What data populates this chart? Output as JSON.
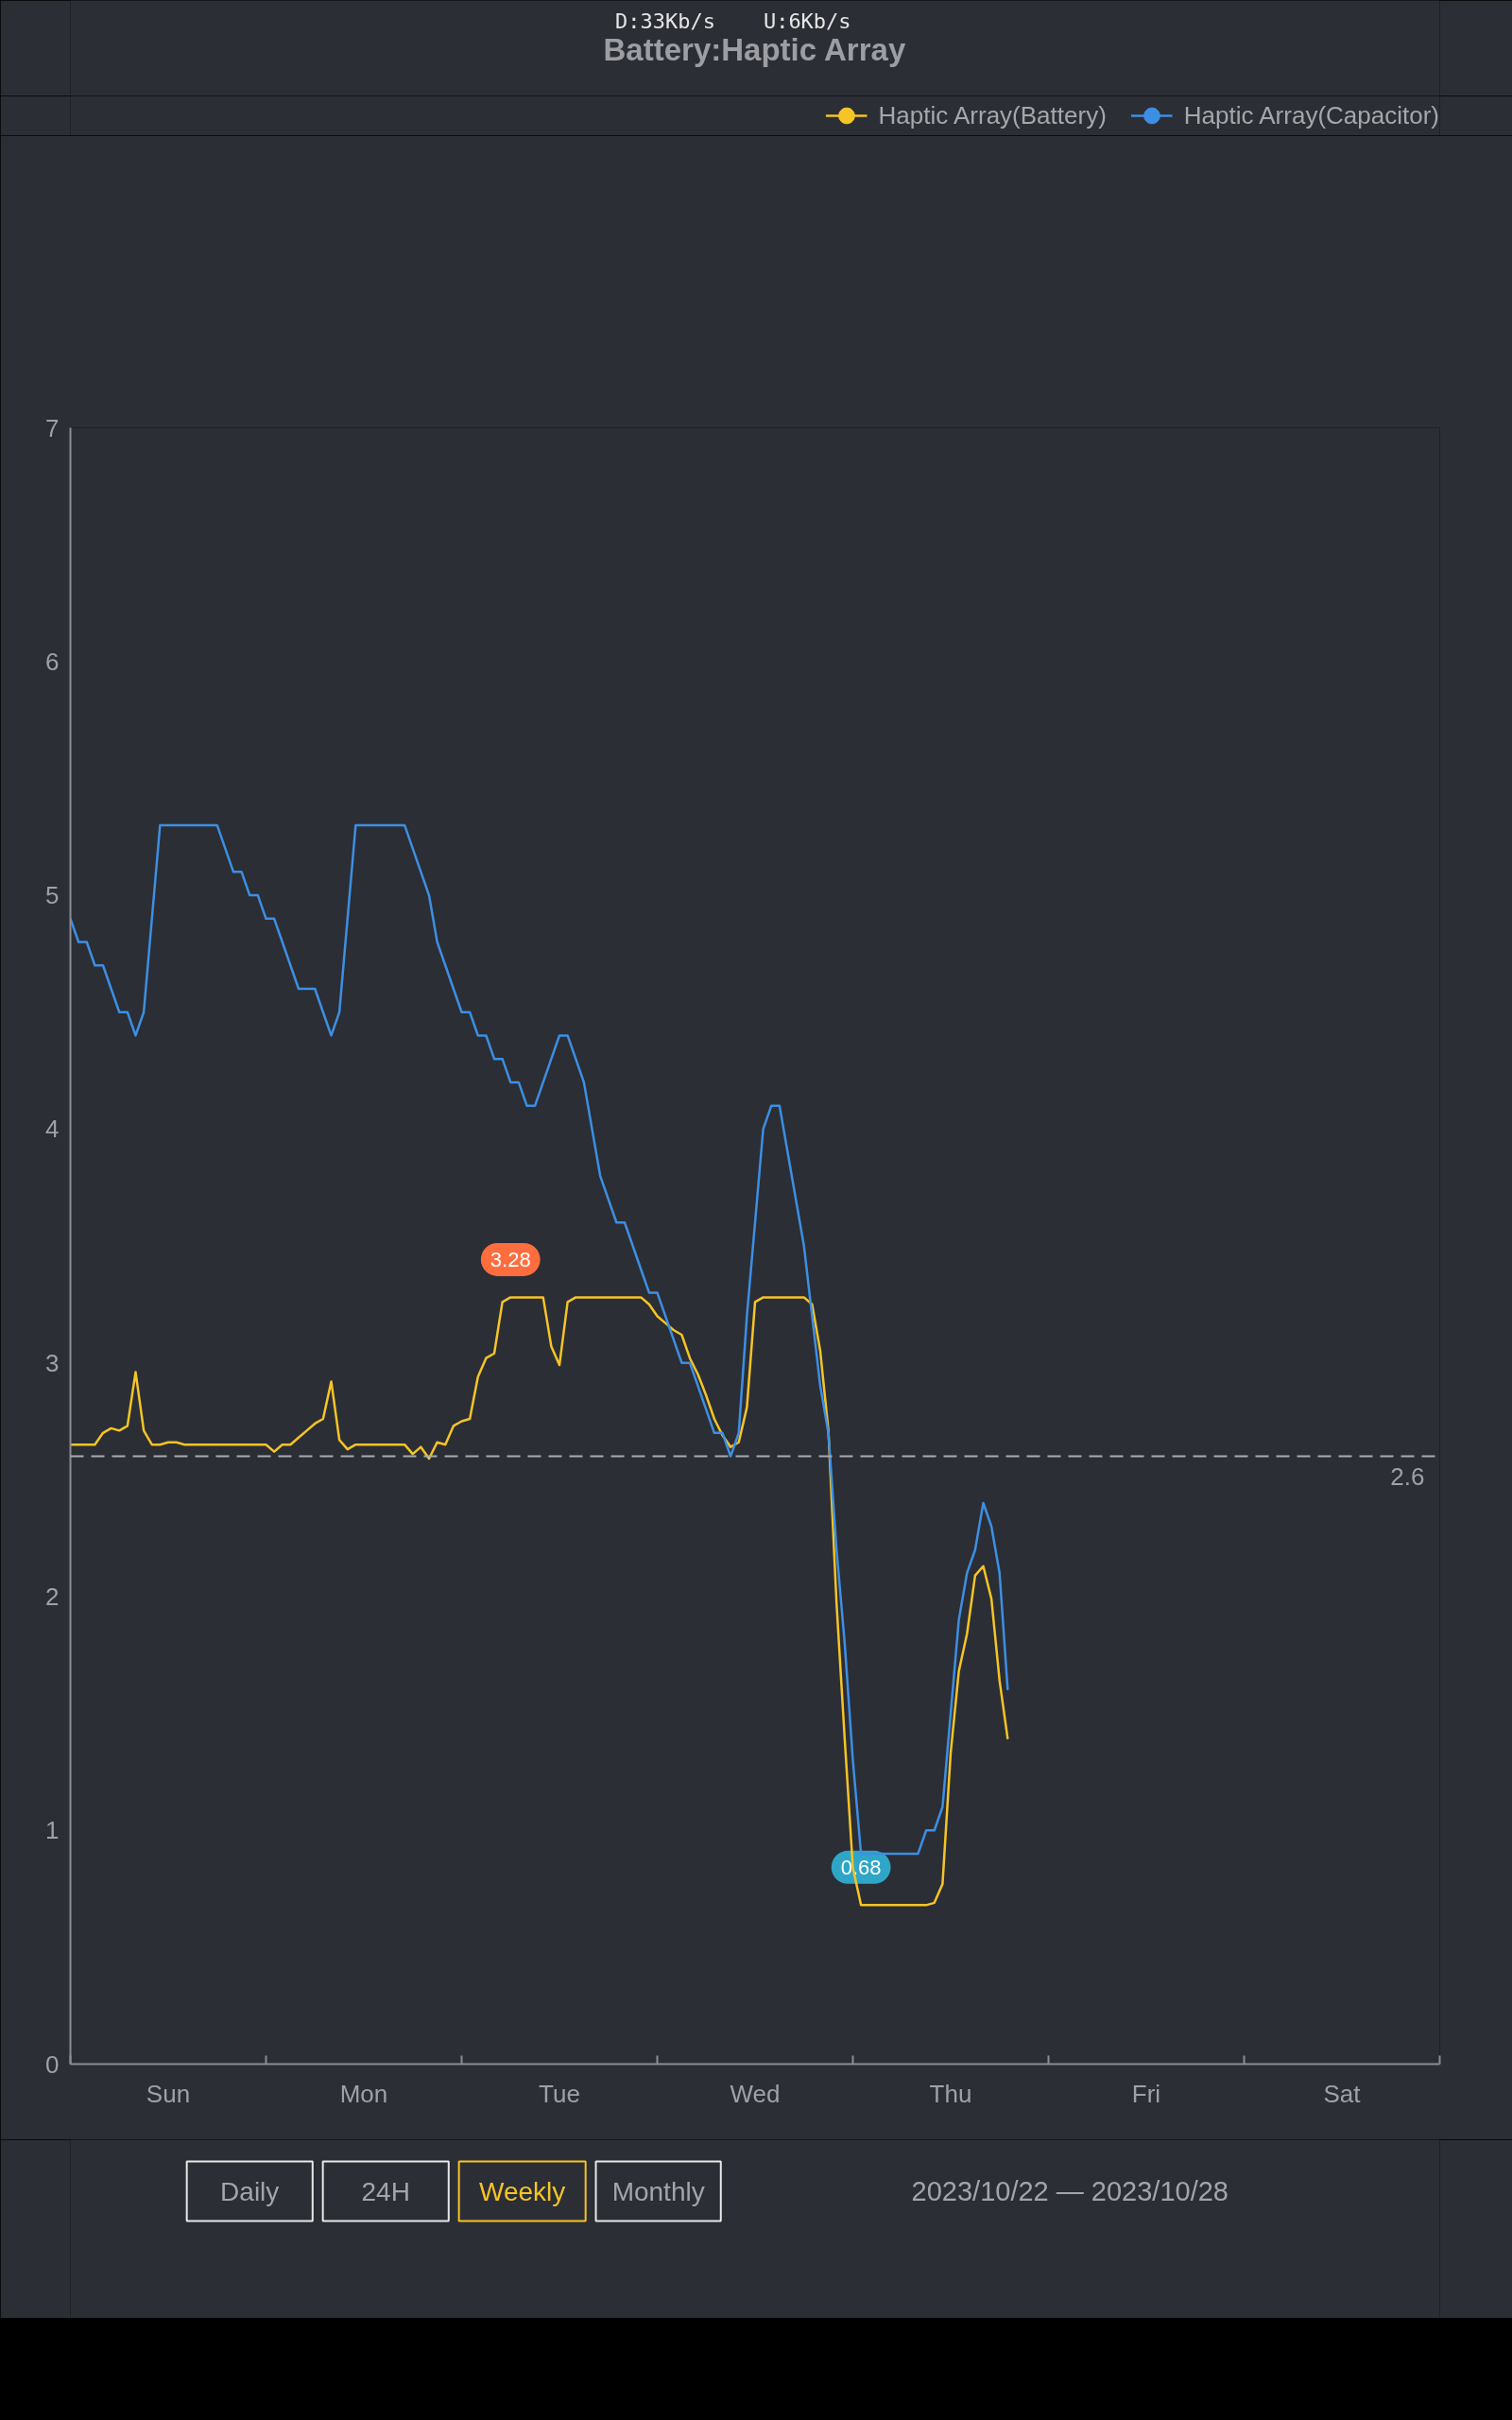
{
  "chart_data": {
    "type": "line",
    "title": "Battery:Haptic Array",
    "categories": [
      null,
      null,
      null,
      null,
      null,
      null,
      null,
      null,
      null,
      null,
      null,
      null,
      "Sun",
      null,
      null,
      null,
      null,
      null,
      null,
      null,
      null,
      null,
      null,
      null,
      null,
      null,
      null,
      null,
      null,
      null,
      null,
      null,
      null,
      null,
      null,
      null,
      "Mon",
      null,
      null,
      null,
      null,
      null,
      null,
      null,
      null,
      null,
      null,
      null,
      null,
      null,
      null,
      null,
      null,
      null,
      null,
      null,
      null,
      null,
      null,
      null,
      "Tue",
      null,
      null,
      null,
      null,
      null,
      null,
      null,
      null,
      null,
      null,
      null,
      null,
      null,
      null,
      null,
      null,
      null,
      null,
      null,
      null,
      null,
      null,
      null,
      "Wed",
      null,
      null,
      null,
      null,
      null,
      null,
      null,
      null,
      null,
      null,
      null,
      null,
      null,
      null,
      null,
      null,
      null,
      null,
      null,
      null,
      null,
      null,
      null,
      "Thu",
      null,
      null,
      null,
      null,
      null,
      null,
      null,
      null,
      null,
      null,
      null,
      null,
      null,
      null,
      null,
      null,
      null,
      null,
      null,
      null,
      null,
      null,
      null,
      "Fri",
      null,
      null,
      null,
      null,
      null,
      null,
      null,
      null,
      null,
      null,
      null,
      null,
      null,
      null,
      null,
      null,
      null,
      null,
      null,
      null,
      null,
      null,
      null,
      "Sat",
      null,
      null,
      null,
      null,
      null,
      null,
      null,
      null,
      null,
      null,
      null
    ],
    "ylim": [
      0,
      7
    ],
    "yticks": [
      0,
      1,
      2,
      3,
      4,
      5,
      6,
      7
    ],
    "grid": false,
    "legend": "top right",
    "series": [
      {
        "name": "Haptic Array(Battery)",
        "color": "#f5c426",
        "values": [
          2.65,
          2.65,
          2.65,
          2.65,
          2.7,
          2.72,
          2.71,
          2.73,
          2.96,
          2.71,
          2.65,
          2.65,
          2.66,
          2.66,
          2.65,
          2.65,
          2.65,
          2.65,
          2.65,
          2.65,
          2.65,
          2.65,
          2.65,
          2.65,
          2.65,
          2.62,
          2.65,
          2.65,
          2.68,
          2.71,
          2.74,
          2.76,
          2.92,
          2.67,
          2.63,
          2.65,
          2.65,
          2.65,
          2.65,
          2.65,
          2.65,
          2.65,
          2.61,
          2.64,
          2.59,
          2.66,
          2.65,
          2.73,
          2.75,
          2.76,
          2.94,
          3.02,
          3.04,
          3.26,
          3.28,
          3.28,
          3.28,
          3.28,
          3.28,
          3.07,
          2.99,
          3.26,
          3.28,
          3.28,
          3.28,
          3.28,
          3.28,
          3.28,
          3.28,
          3.28,
          3.28,
          3.25,
          3.2,
          3.17,
          3.14,
          3.12,
          3.02,
          2.95,
          2.86,
          2.76,
          2.69,
          2.64,
          2.66,
          2.81,
          3.26,
          3.28,
          3.28,
          3.28,
          3.28,
          3.28,
          3.28,
          3.25,
          3.05,
          2.71,
          1.97,
          1.39,
          0.84,
          0.68,
          0.68,
          0.68,
          0.68,
          0.68,
          0.68,
          0.68,
          0.68,
          0.68,
          0.69,
          0.77,
          1.33,
          1.68,
          1.84,
          2.09,
          2.13,
          1.99,
          1.64,
          1.39,
          null,
          null,
          null,
          null,
          null,
          null,
          null,
          null,
          null,
          null,
          null,
          null,
          null,
          null,
          null,
          null,
          null,
          null,
          null,
          null,
          null,
          null,
          null,
          null,
          null,
          null,
          null,
          null,
          null,
          null,
          null,
          null,
          null,
          null,
          null,
          null,
          null,
          null,
          null,
          null,
          null,
          null,
          null,
          null,
          null,
          null,
          null,
          null,
          null,
          null,
          null,
          null
        ]
      },
      {
        "name": "Haptic Array(Capacitor)",
        "color": "#3d8fe3",
        "values": [
          4.9,
          4.8,
          4.8,
          4.7,
          4.7,
          4.6,
          4.5,
          4.5,
          4.4,
          4.5,
          4.9,
          5.3,
          5.3,
          5.3,
          5.3,
          5.3,
          5.3,
          5.3,
          5.3,
          5.2,
          5.1,
          5.1,
          5.0,
          5.0,
          4.9,
          4.9,
          4.8,
          4.7,
          4.6,
          4.6,
          4.6,
          4.5,
          4.4,
          4.5,
          4.9,
          5.3,
          5.3,
          5.3,
          5.3,
          5.3,
          5.3,
          5.3,
          5.2,
          5.1,
          5.0,
          4.8,
          4.7,
          4.6,
          4.5,
          4.5,
          4.4,
          4.4,
          4.3,
          4.3,
          4.2,
          4.2,
          4.1,
          4.1,
          4.2,
          4.3,
          4.4,
          4.4,
          4.3,
          4.2,
          4.0,
          3.8,
          3.7,
          3.6,
          3.6,
          3.5,
          3.4,
          3.3,
          3.3,
          3.2,
          3.1,
          3.0,
          3.0,
          2.9,
          2.8,
          2.7,
          2.7,
          2.6,
          2.7,
          3.2,
          3.6,
          4.0,
          4.1,
          4.1,
          3.9,
          3.7,
          3.5,
          3.2,
          2.9,
          2.7,
          2.2,
          1.8,
          1.3,
          0.9,
          0.9,
          0.9,
          0.9,
          0.9,
          0.9,
          0.9,
          0.9,
          1.0,
          1.0,
          1.1,
          1.5,
          1.9,
          2.1,
          2.2,
          2.4,
          2.3,
          2.1,
          1.6,
          null,
          null,
          null,
          null,
          null,
          null,
          null,
          null,
          null,
          null,
          null,
          null,
          null,
          null,
          null,
          null,
          null,
          null,
          null,
          null,
          null,
          null,
          null,
          null,
          null,
          null,
          null,
          null,
          null,
          null,
          null,
          null,
          null,
          null,
          null,
          null,
          null,
          null,
          null,
          null,
          null,
          null,
          null,
          null,
          null,
          null,
          null,
          null,
          null,
          null,
          null,
          null
        ]
      }
    ],
    "ref_lines": [
      {
        "axis": "y",
        "value": 2.6,
        "label": "2.6",
        "color": "#a9abb0",
        "line_style": "dashed"
      }
    ],
    "annotations": [
      {
        "text": "3.28",
        "y": 3.28
      },
      {
        "text": "0.68",
        "y": 0.68
      },
      "D:33Kb/s",
      "U:6Kb/s",
      "Daily",
      "24H",
      "Weekly",
      "Monthly",
      "2023/10/22 — 2023/10/28"
    ]
  }
}
